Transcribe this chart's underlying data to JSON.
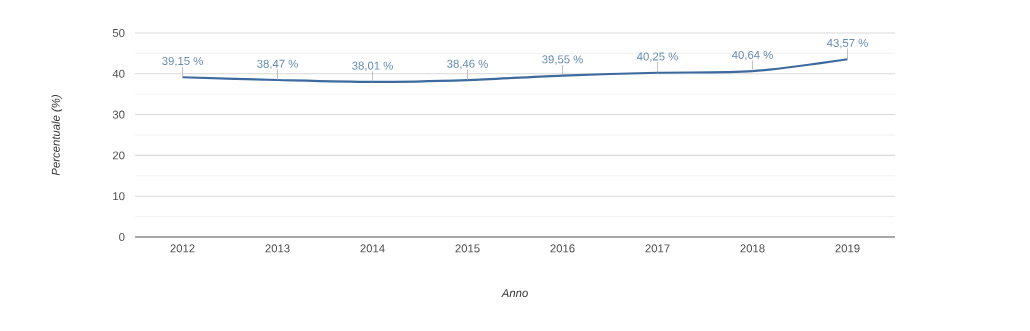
{
  "chart_data": {
    "type": "line",
    "xlabel": "Anno",
    "ylabel": "Percentuale (%)",
    "categories": [
      "2012",
      "2013",
      "2014",
      "2015",
      "2016",
      "2017",
      "2018",
      "2019"
    ],
    "series": [
      {
        "color": "#3d6a9e",
        "values": [
          39.15,
          38.47,
          38.01,
          38.46,
          39.55,
          40.25,
          40.64,
          43.57
        ],
        "value_labels": [
          "39,15 %",
          "38,47 %",
          "38,01 %",
          "38,46 %",
          "39,55 %",
          "40,25 %",
          "40,64 %",
          "43,57 %"
        ]
      }
    ],
    "ylim": [
      0,
      50
    ],
    "yticks": [
      0,
      {
        "value": 5,
        "label": null
      },
      10,
      {
        "value": 15,
        "label": null
      },
      20,
      {
        "value": 25,
        "label": null
      },
      30,
      {
        "value": 35,
        "label": null
      },
      40,
      {
        "value": 45,
        "label": null
      },
      50
    ],
    "grid": "y",
    "marker": "none",
    "line_style": "solid"
  }
}
